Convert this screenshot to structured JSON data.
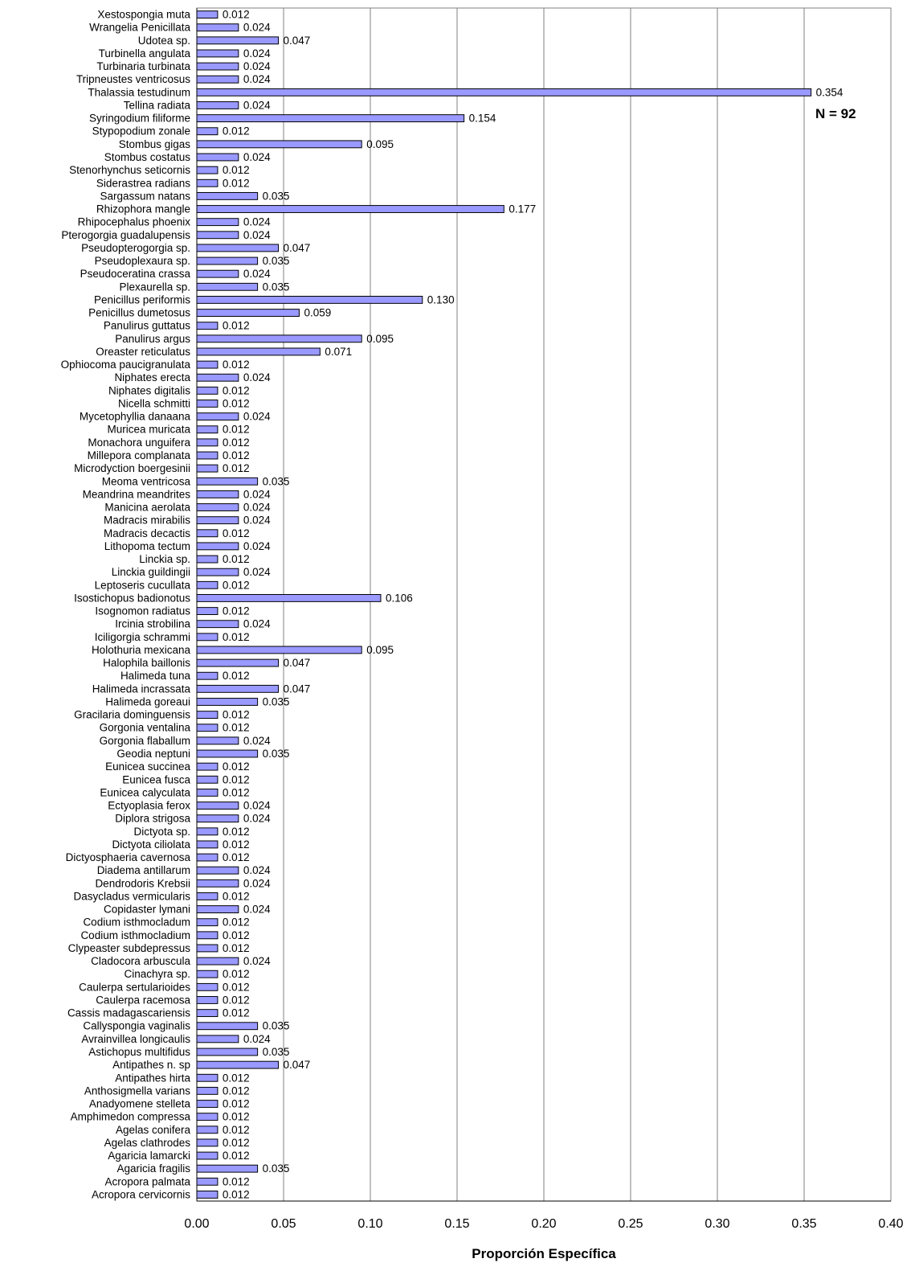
{
  "chart_data": {
    "type": "bar",
    "orientation": "horizontal",
    "categories": [
      "Xestospongia muta",
      "Wrangelia Penicillata",
      "Udotea sp.",
      "Turbinella angulata",
      "Turbinaria turbinata",
      "Tripneustes ventricosus",
      "Thalassia testudinum",
      "Tellina radiata",
      "Syringodium filiforme",
      "Stypopodium zonale",
      "Stombus gigas",
      "Stombus costatus",
      "Stenorhynchus seticornis",
      "Siderastrea radians",
      "Sargassum natans",
      "Rhizophora mangle",
      "Rhipocephalus phoenix",
      "Pterogorgia guadalupensis",
      "Pseudopterogorgia sp.",
      "Pseudoplexaura sp.",
      "Pseudoceratina crassa",
      "Plexaurella sp.",
      "Penicillus periformis",
      "Penicillus dumetosus",
      "Panulirus guttatus",
      "Panulirus argus",
      "Oreaster reticulatus",
      "Ophiocoma paucigranulata",
      "Niphates erecta",
      "Niphates digitalis",
      "Nicella schmitti",
      "Mycetophyllia danaana",
      "Muricea muricata",
      "Monachora unguifera",
      "Millepora complanata",
      "Microdyction boergesinii",
      "Meoma ventricosa",
      "Meandrina meandrites",
      "Manicina aerolata",
      "Madracis mirabilis",
      "Madracis decactis",
      "Lithopoma tectum",
      "Linckia sp.",
      "Linckia guildingii",
      "Leptoseris cucullata",
      "Isostichopus badionotus",
      "Isognomon radiatus",
      "Ircinia strobilina",
      "Iciligorgia schrammi",
      "Holothuria mexicana",
      "Halophila baillonis",
      "Halimeda tuna",
      "Halimeda incrassata",
      "Halimeda goreaui",
      "Gracilaria dominguensis",
      "Gorgonia ventalina",
      "Gorgonia flaballum",
      "Geodia neptuni",
      "Eunicea succinea",
      "Eunicea fusca",
      "Eunicea calyculata",
      "Ectyoplasia ferox",
      "Diplora strigosa",
      "Dictyota sp.",
      "Dictyota ciliolata",
      "Dictyosphaeria cavernosa",
      "Diadema antillarum",
      "Dendrodoris Krebsii",
      "Dasycladus vermicularis",
      "Copidaster lymani",
      "Codium isthmocladum",
      "Codium isthmocladium",
      "Clypeaster subdepressus",
      "Cladocora arbuscula",
      "Cinachyra sp.",
      "Caulerpa sertularioides",
      "Caulerpa racemosa",
      "Cassis madagascariensis",
      "Callyspongia vaginalis",
      "Avrainvillea longicaulis",
      "Astichopus multifidus",
      "Antipathes n. sp",
      "Antipathes hirta",
      "Anthosigmella varians",
      "Anadyomene stelleta",
      "Amphimedon compressa",
      "Agelas conifera",
      "Agelas clathrodes",
      "Agaricia lamarcki",
      "Agaricia fragilis",
      "Acropora palmata",
      "Acropora cervicornis"
    ],
    "values": [
      0.012,
      0.024,
      0.047,
      0.024,
      0.024,
      0.024,
      0.354,
      0.024,
      0.154,
      0.012,
      0.095,
      0.024,
      0.012,
      0.012,
      0.035,
      0.177,
      0.024,
      0.024,
      0.047,
      0.035,
      0.024,
      0.035,
      0.13,
      0.059,
      0.012,
      0.095,
      0.071,
      0.012,
      0.024,
      0.012,
      0.012,
      0.024,
      0.012,
      0.012,
      0.012,
      0.012,
      0.035,
      0.024,
      0.024,
      0.024,
      0.012,
      0.024,
      0.012,
      0.024,
      0.012,
      0.106,
      0.012,
      0.024,
      0.012,
      0.095,
      0.047,
      0.012,
      0.047,
      0.035,
      0.012,
      0.012,
      0.024,
      0.035,
      0.012,
      0.012,
      0.012,
      0.024,
      0.024,
      0.012,
      0.012,
      0.012,
      0.024,
      0.024,
      0.012,
      0.024,
      0.012,
      0.012,
      0.012,
      0.024,
      0.012,
      0.012,
      0.012,
      0.012,
      0.035,
      0.024,
      0.035,
      0.047,
      0.012,
      0.012,
      0.012,
      0.012,
      0.012,
      0.012,
      0.012,
      0.035,
      0.012,
      0.012
    ],
    "value_labels": [
      "0.012",
      "0.024",
      "0.047",
      "0.024",
      "0.024",
      "0.024",
      "0.354",
      "0.024",
      "0.154",
      "0.012",
      "0.095",
      "0.024",
      "0.012",
      "0.012",
      "0.035",
      "0.177",
      "0.024",
      "0.024",
      "0.047",
      "0.035",
      "0.024",
      "0.035",
      "0.130",
      "0.059",
      "0.012",
      "0.095",
      "0.071",
      "0.012",
      "0.024",
      "0.012",
      "0.012",
      "0.024",
      "0.012",
      "0.012",
      "0.012",
      "0.012",
      "0.035",
      "0.024",
      "0.024",
      "0.024",
      "0.012",
      "0.024",
      "0.012",
      "0.024",
      "0.012",
      "0.106",
      "0.012",
      "0.024",
      "0.012",
      "0.095",
      "0.047",
      "0.012",
      "0.047",
      "0.035",
      "0.012",
      "0.012",
      "0.024",
      "0.035",
      "0.012",
      "0.012",
      "0.012",
      "0.024",
      "0.024",
      "0.012",
      "0.012",
      "0.012",
      "0.024",
      "0.024",
      "0.012",
      "0.024",
      "0.012",
      "0.012",
      "0.012",
      "0.024",
      "0.012",
      "0.012",
      "0.012",
      "0.012",
      "0.035",
      "0.024",
      "0.035",
      "0.047",
      "0.012",
      "0.012",
      "0.012",
      "0.012",
      "0.012",
      "0.012",
      "0.012",
      "0.035",
      "0.012",
      "0.012"
    ],
    "xlabel": "Proporción Específica",
    "ylabel": "",
    "title": "",
    "xlim": [
      0,
      0.4
    ],
    "xticks": [
      "0.00",
      "0.05",
      "0.10",
      "0.15",
      "0.20",
      "0.25",
      "0.30",
      "0.35",
      "0.40"
    ],
    "grid": "vertical",
    "legend": "none",
    "annotation": "N = 92",
    "annotation_placement": "top-right",
    "bar_color": "#9999ff",
    "bar_edge_color": "#000000",
    "grid_color": "#808080"
  }
}
